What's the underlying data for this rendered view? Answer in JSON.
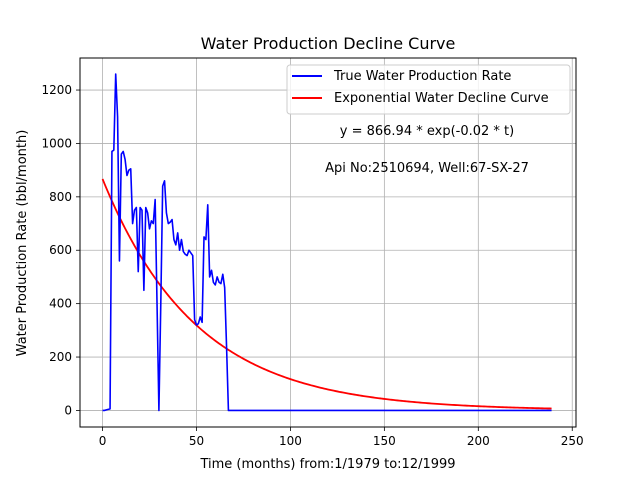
{
  "chart_data": {
    "type": "line",
    "title": "Water Production Decline Curve",
    "xlabel": "Time (months) from:1/1979 to:12/1999",
    "ylabel": "Water Production Rate (bbl/month)",
    "xlim": [
      -12,
      252
    ],
    "ylim": [
      -62,
      1320
    ],
    "xticks": [
      0,
      50,
      100,
      150,
      200,
      250
    ],
    "yticks": [
      0,
      200,
      400,
      600,
      800,
      1000,
      1200
    ],
    "grid": true,
    "legend_position": "top-right",
    "annotations": [
      "y = 866.94 * exp(-0.02 * t)",
      "Api No:2510694, Well:67-SX-27"
    ],
    "series": [
      {
        "name": "True Water Production Rate",
        "color": "#0000ff",
        "points": [
          [
            0,
            0
          ],
          [
            1,
            0
          ],
          [
            2,
            2
          ],
          [
            3,
            4
          ],
          [
            4,
            6
          ],
          [
            5,
            970
          ],
          [
            6,
            975
          ],
          [
            7,
            1260
          ],
          [
            8,
            1100
          ],
          [
            9,
            560
          ],
          [
            10,
            960
          ],
          [
            11,
            970
          ],
          [
            12,
            940
          ],
          [
            13,
            880
          ],
          [
            14,
            900
          ],
          [
            15,
            905
          ],
          [
            16,
            700
          ],
          [
            17,
            750
          ],
          [
            18,
            760
          ],
          [
            19,
            520
          ],
          [
            20,
            760
          ],
          [
            21,
            750
          ],
          [
            22,
            450
          ],
          [
            23,
            760
          ],
          [
            24,
            740
          ],
          [
            25,
            680
          ],
          [
            26,
            710
          ],
          [
            27,
            700
          ],
          [
            28,
            790
          ],
          [
            29,
            400
          ],
          [
            30,
            0
          ],
          [
            31,
            400
          ],
          [
            32,
            840
          ],
          [
            33,
            860
          ],
          [
            34,
            740
          ],
          [
            35,
            700
          ],
          [
            36,
            705
          ],
          [
            37,
            715
          ],
          [
            38,
            640
          ],
          [
            39,
            620
          ],
          [
            40,
            665
          ],
          [
            41,
            600
          ],
          [
            42,
            640
          ],
          [
            43,
            595
          ],
          [
            44,
            585
          ],
          [
            45,
            580
          ],
          [
            46,
            600
          ],
          [
            47,
            590
          ],
          [
            48,
            580
          ],
          [
            49,
            340
          ],
          [
            50,
            320
          ],
          [
            51,
            325
          ],
          [
            52,
            350
          ],
          [
            53,
            330
          ],
          [
            54,
            650
          ],
          [
            55,
            640
          ],
          [
            56,
            770
          ],
          [
            57,
            500
          ],
          [
            58,
            525
          ],
          [
            59,
            480
          ],
          [
            60,
            470
          ],
          [
            61,
            500
          ],
          [
            62,
            480
          ],
          [
            63,
            475
          ],
          [
            64,
            510
          ],
          [
            65,
            460
          ],
          [
            66,
            240
          ],
          [
            67,
            0
          ],
          [
            68,
            0
          ],
          [
            100,
            0
          ],
          [
            150,
            0
          ],
          [
            200,
            0
          ],
          [
            239,
            0
          ]
        ]
      },
      {
        "name": "Exponential Water Decline Curve",
        "color": "#ff0000",
        "equation": {
          "a": 866.94,
          "b": -0.02
        },
        "x_range": [
          0,
          239
        ]
      }
    ]
  }
}
